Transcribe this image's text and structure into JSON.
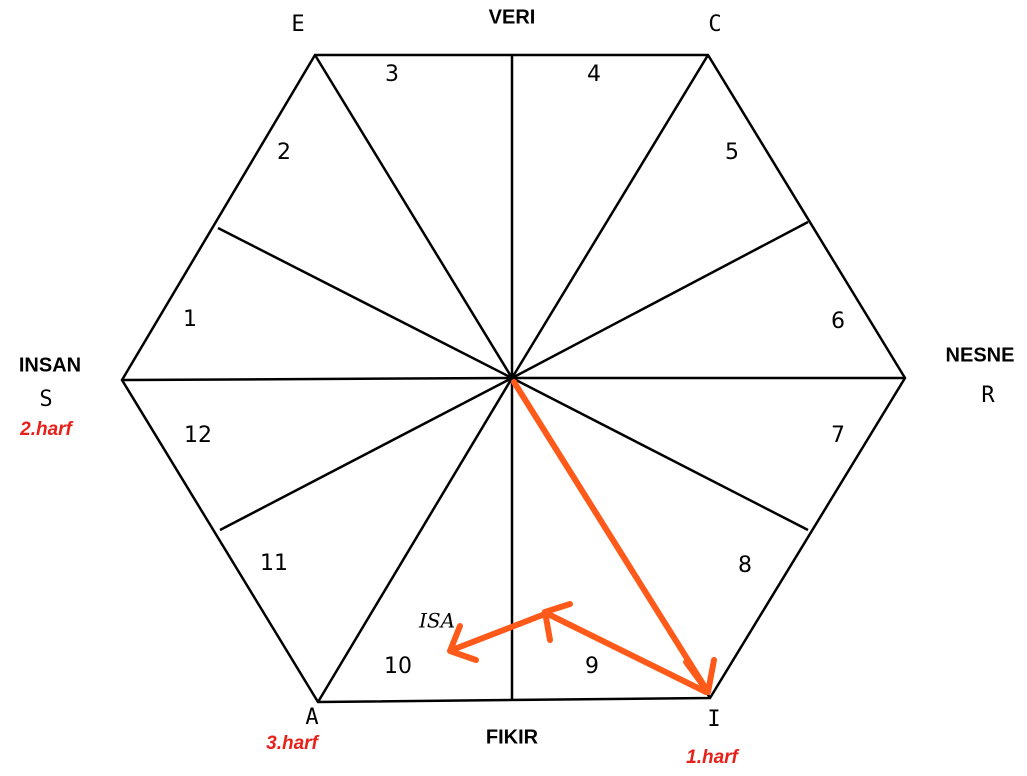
{
  "sides": {
    "top": "VERI",
    "left": "INSAN",
    "right": "NESNE",
    "bottom": "FIKIR"
  },
  "vertices": {
    "top_left": "E",
    "top_right": "C",
    "left": "S",
    "right": "R",
    "bottom_left": "A",
    "bottom_right": "I"
  },
  "order_labels": {
    "first": "1.harf",
    "second": "2.harf",
    "third": "3.harf"
  },
  "segments": [
    1,
    2,
    3,
    4,
    5,
    6,
    7,
    8,
    9,
    10,
    11,
    12
  ],
  "result": "ISA"
}
